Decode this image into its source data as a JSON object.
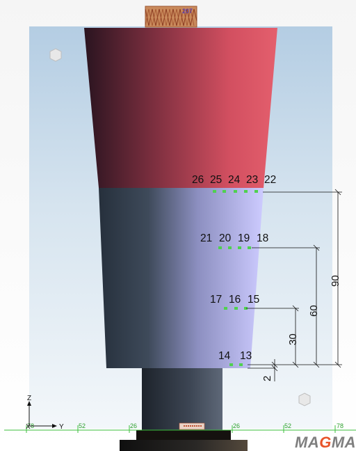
{
  "viewport": {
    "top_label": "207",
    "sensor_labels": {
      "row1": [
        "26",
        "25",
        "24",
        "23",
        "22"
      ],
      "row2": [
        "21",
        "20",
        "19",
        "18"
      ],
      "row3": [
        "17",
        "16",
        "15"
      ],
      "row4": [
        "14",
        "13"
      ]
    },
    "dimensions": [
      "90",
      "60",
      "30",
      "2"
    ],
    "axis_ticks": [
      "78",
      "52",
      "26",
      "26",
      "52",
      "78"
    ],
    "axis_letters": {
      "z": "Z",
      "x": "X",
      "y": "Y"
    },
    "brand": {
      "part1": "MA",
      "part2": "G",
      "part3": "MA"
    },
    "colors": {
      "feeder_top": "#e05a69",
      "feeder_dark": "#2a1420",
      "casting_light": "#c6c4ff",
      "casting_dark": "#2b3442",
      "sensor": "#4fd14f",
      "brand_accent": "#e8542a"
    }
  }
}
